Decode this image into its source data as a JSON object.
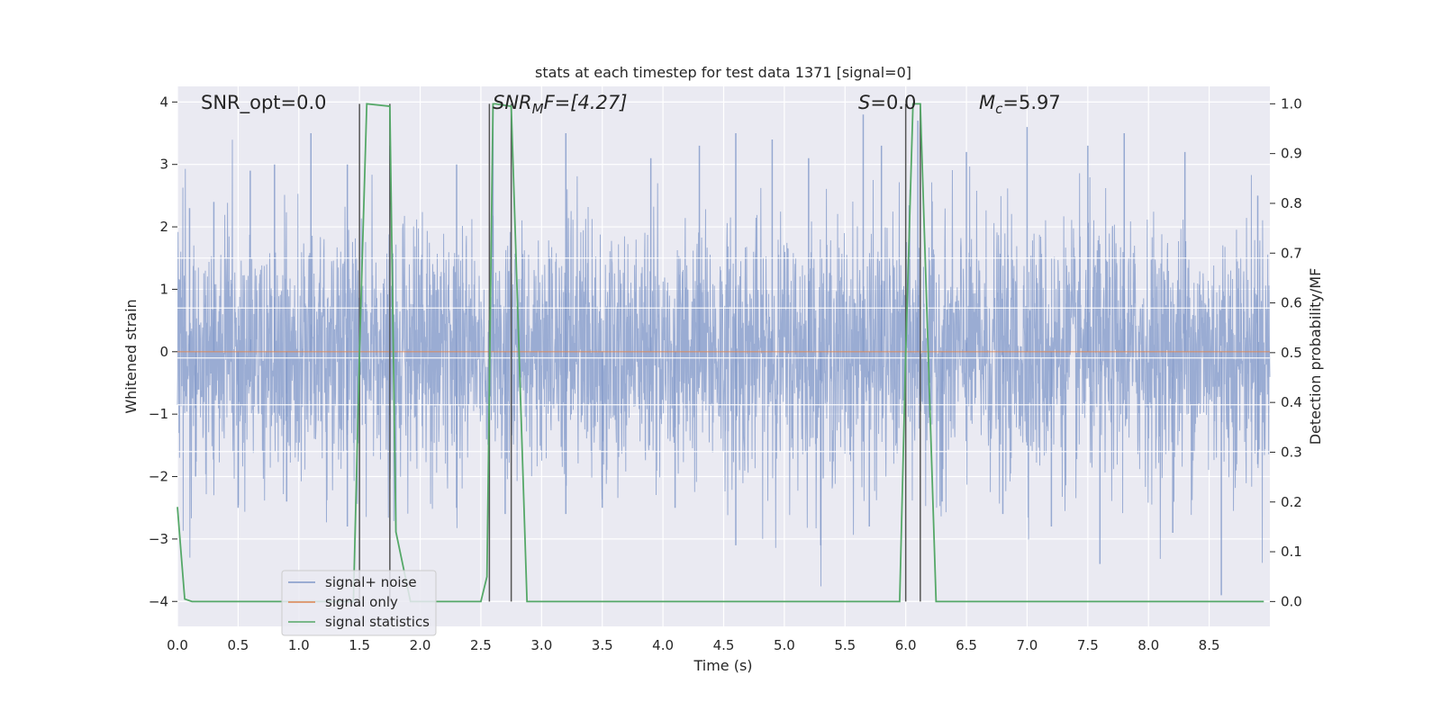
{
  "chart_data": {
    "type": "line",
    "title": "stats at each timestep for test data 1371 [signal=0]",
    "xlabel": "Time (s)",
    "ylabel_left": "Whitened strain",
    "ylabel_right": "Detection probability/MF",
    "xlim": [
      0.0,
      9.0
    ],
    "ylim_left": [
      -4.4,
      4.25
    ],
    "ylim_right": [
      -0.05,
      1.035
    ],
    "xticks": [
      "0.0",
      "0.5",
      "1.0",
      "1.5",
      "2.0",
      "2.5",
      "3.0",
      "3.5",
      "4.0",
      "4.5",
      "5.0",
      "5.5",
      "6.0",
      "6.5",
      "7.0",
      "7.5",
      "8.0",
      "8.5"
    ],
    "xtick_values": [
      0.0,
      0.5,
      1.0,
      1.5,
      2.0,
      2.5,
      3.0,
      3.5,
      4.0,
      4.5,
      5.0,
      5.5,
      6.0,
      6.5,
      7.0,
      7.5,
      8.0,
      8.5
    ],
    "yticks_left": [
      "4",
      "3",
      "2",
      "1",
      "0",
      "−1",
      "−2",
      "−3",
      "−4"
    ],
    "ytick_values_left": [
      4,
      3,
      2,
      1,
      0,
      -1,
      -2,
      -3,
      -4
    ],
    "yticks_right": [
      "1.0",
      "0.9",
      "0.8",
      "0.7",
      "0.6",
      "0.5",
      "0.4",
      "0.3",
      "0.2",
      "0.1",
      "0.0"
    ],
    "ytick_values_right": [
      1.0,
      0.9,
      0.8,
      0.7,
      0.6,
      0.5,
      0.4,
      0.3,
      0.2,
      0.1,
      0.0
    ],
    "grid": true,
    "legend_position": "lower-left",
    "legend": [
      {
        "label": "signal+ noise",
        "color": "#7f97c8"
      },
      {
        "label": "signal only",
        "color": "#dd8452"
      },
      {
        "label": "signal statistics",
        "color": "#55a868"
      }
    ],
    "annotations": {
      "snr_opt": "SNR_opt=0.0",
      "snr_mf_main": "SNR",
      "snr_mf_sub": "M",
      "snr_mf_rest": "F=[4.27]",
      "s_main": "S",
      "s_rest": "=0.0",
      "mc_main": "M",
      "mc_sub": "c",
      "mc_rest": "=5.97"
    },
    "series": [
      {
        "name": "signal+ noise",
        "axis": "left",
        "description_stats": {
          "mean": 0.0,
          "std": 1.0
        },
        "noise_envelope_peaks": [
          [
            0.1,
            2.3
          ],
          [
            0.3,
            2.4
          ],
          [
            0.6,
            2.9
          ],
          [
            0.8,
            3.0
          ],
          [
            1.1,
            3.5
          ],
          [
            1.4,
            3.0
          ],
          [
            1.75,
            3.3
          ],
          [
            2.3,
            3.0
          ],
          [
            2.6,
            3.9
          ],
          [
            3.2,
            3.5
          ],
          [
            3.9,
            3.1
          ],
          [
            4.3,
            3.3
          ],
          [
            4.6,
            3.5
          ],
          [
            4.9,
            3.4
          ],
          [
            5.2,
            3.1
          ],
          [
            5.65,
            3.8
          ],
          [
            5.8,
            3.3
          ],
          [
            6.1,
            3.7
          ],
          [
            6.5,
            3.2
          ],
          [
            7.0,
            3.6
          ],
          [
            7.5,
            3.3
          ],
          [
            7.8,
            3.5
          ],
          [
            8.3,
            3.2
          ],
          [
            8.9,
            2.5
          ]
        ],
        "noise_envelope_troughs": [
          [
            0.15,
            -2.0
          ],
          [
            0.5,
            -2.5
          ],
          [
            0.9,
            -2.4
          ],
          [
            1.4,
            -2.8
          ],
          [
            1.8,
            -2.9
          ],
          [
            2.3,
            -2.5
          ],
          [
            2.7,
            -2.6
          ],
          [
            3.2,
            -2.6
          ],
          [
            3.5,
            -2.5
          ],
          [
            4.1,
            -2.5
          ],
          [
            4.6,
            -3.1
          ],
          [
            5.3,
            -3.1
          ],
          [
            5.7,
            -2.8
          ],
          [
            6.3,
            -2.4
          ],
          [
            6.8,
            -2.6
          ],
          [
            7.2,
            -2.8
          ],
          [
            7.6,
            -3.4
          ],
          [
            8.2,
            -2.9
          ],
          [
            8.6,
            -3.9
          ],
          [
            8.9,
            -1.8
          ]
        ]
      },
      {
        "name": "signal only",
        "axis": "left",
        "x": [
          0.0,
          9.0
        ],
        "y": [
          0.0,
          0.0
        ]
      },
      {
        "name": "signal statistics",
        "axis": "right",
        "x": [
          0.0,
          0.06,
          0.12,
          1.45,
          1.5,
          1.56,
          1.75,
          1.8,
          1.92,
          2.5,
          2.55,
          2.6,
          2.62,
          2.75,
          2.88,
          5.95,
          6.0,
          6.06,
          6.12,
          6.25,
          8.95
        ],
        "y": [
          0.19,
          0.005,
          0.0,
          0.0,
          0.5,
          1.0,
          0.995,
          0.14,
          0.0,
          0.0,
          0.05,
          1.0,
          1.0,
          0.995,
          0.0,
          0.0,
          0.5,
          1.0,
          1.0,
          0.0,
          0.0
        ]
      }
    ],
    "vertical_markers": [
      1.5,
      1.75,
      2.57,
      2.75,
      6.0,
      6.12
    ]
  }
}
